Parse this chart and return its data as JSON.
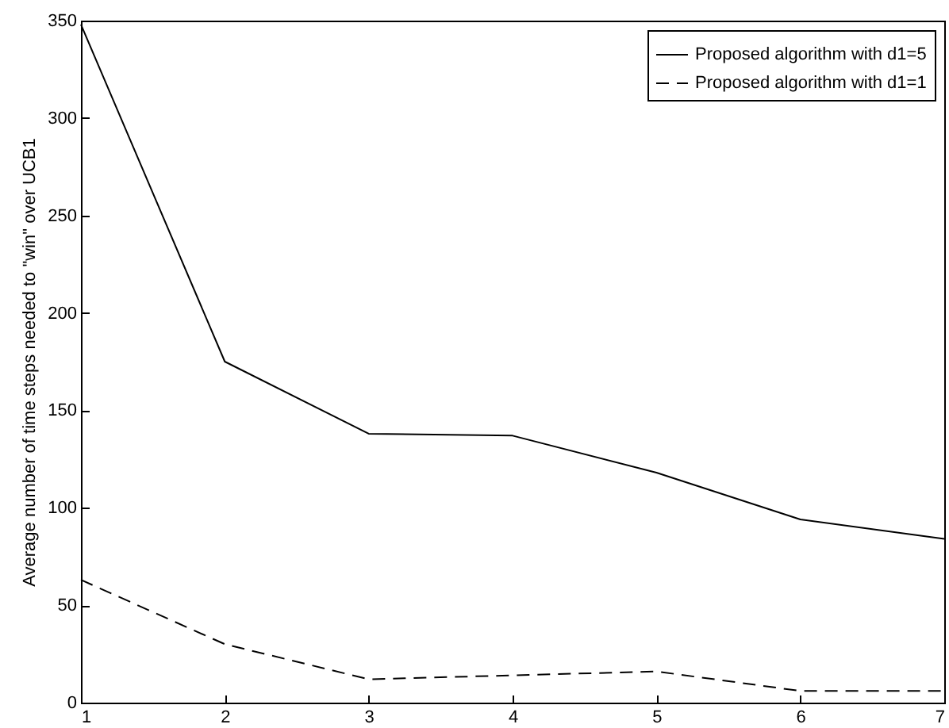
{
  "chart_data": {
    "type": "line",
    "ylabel": "Average number of time steps needed to \"win\" over UCB1",
    "x": [
      1,
      2,
      3,
      4,
      5,
      6,
      7
    ],
    "series": [
      {
        "name": "Proposed algorithm with d1=5",
        "color": "#000000",
        "line_style": "solid",
        "values": [
          348,
          175,
          138,
          137,
          118,
          94,
          84
        ]
      },
      {
        "name": "Proposed algorithm with d1=1",
        "color": "#000000",
        "line_style": "dashed",
        "values": [
          63,
          30,
          12,
          14,
          16,
          6,
          6
        ]
      }
    ],
    "xlim": [
      1,
      7
    ],
    "xticks": [
      1,
      2,
      3,
      4,
      5,
      6,
      7
    ],
    "ylim": [
      0,
      350
    ],
    "yticks": [
      0,
      50,
      100,
      150,
      200,
      250,
      300,
      350
    ],
    "grid": false,
    "legend": "top right",
    "marker": "none"
  }
}
